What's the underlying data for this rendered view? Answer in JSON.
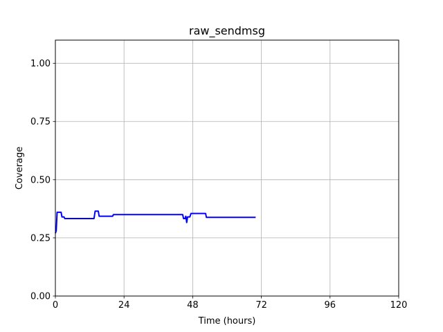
{
  "chart_data": {
    "type": "line",
    "title": "raw_sendmsg",
    "xlabel": "Time (hours)",
    "ylabel": "Coverage",
    "xlim": [
      0,
      120
    ],
    "ylim": [
      0,
      1.1
    ],
    "xticks": [
      0,
      24,
      48,
      72,
      96,
      120
    ],
    "xtick_labels": [
      "0",
      "24",
      "48",
      "72",
      "96",
      "120"
    ],
    "yticks": [
      0.0,
      0.25,
      0.5,
      0.75,
      1.0
    ],
    "ytick_labels": [
      "0.00",
      "0.25",
      "0.50",
      "0.75",
      "1.00"
    ],
    "grid": true,
    "series": [
      {
        "color": "#0000ff",
        "x": [
          0.0,
          0.3,
          0.6,
          0.8,
          2.0,
          2.3,
          3.0,
          3.3,
          13.5,
          13.9,
          15.0,
          15.3,
          20.0,
          20.3,
          44.5,
          44.8,
          45.3,
          45.6,
          45.9,
          46.2,
          46.5,
          47.0,
          47.4,
          52.5,
          52.8,
          70.0
        ],
        "y": [
          0.27,
          0.28,
          0.36,
          0.36,
          0.36,
          0.34,
          0.34,
          0.333,
          0.333,
          0.365,
          0.365,
          0.343,
          0.343,
          0.35,
          0.35,
          0.333,
          0.333,
          0.343,
          0.316,
          0.34,
          0.34,
          0.34,
          0.355,
          0.355,
          0.338,
          0.338
        ]
      }
    ]
  }
}
